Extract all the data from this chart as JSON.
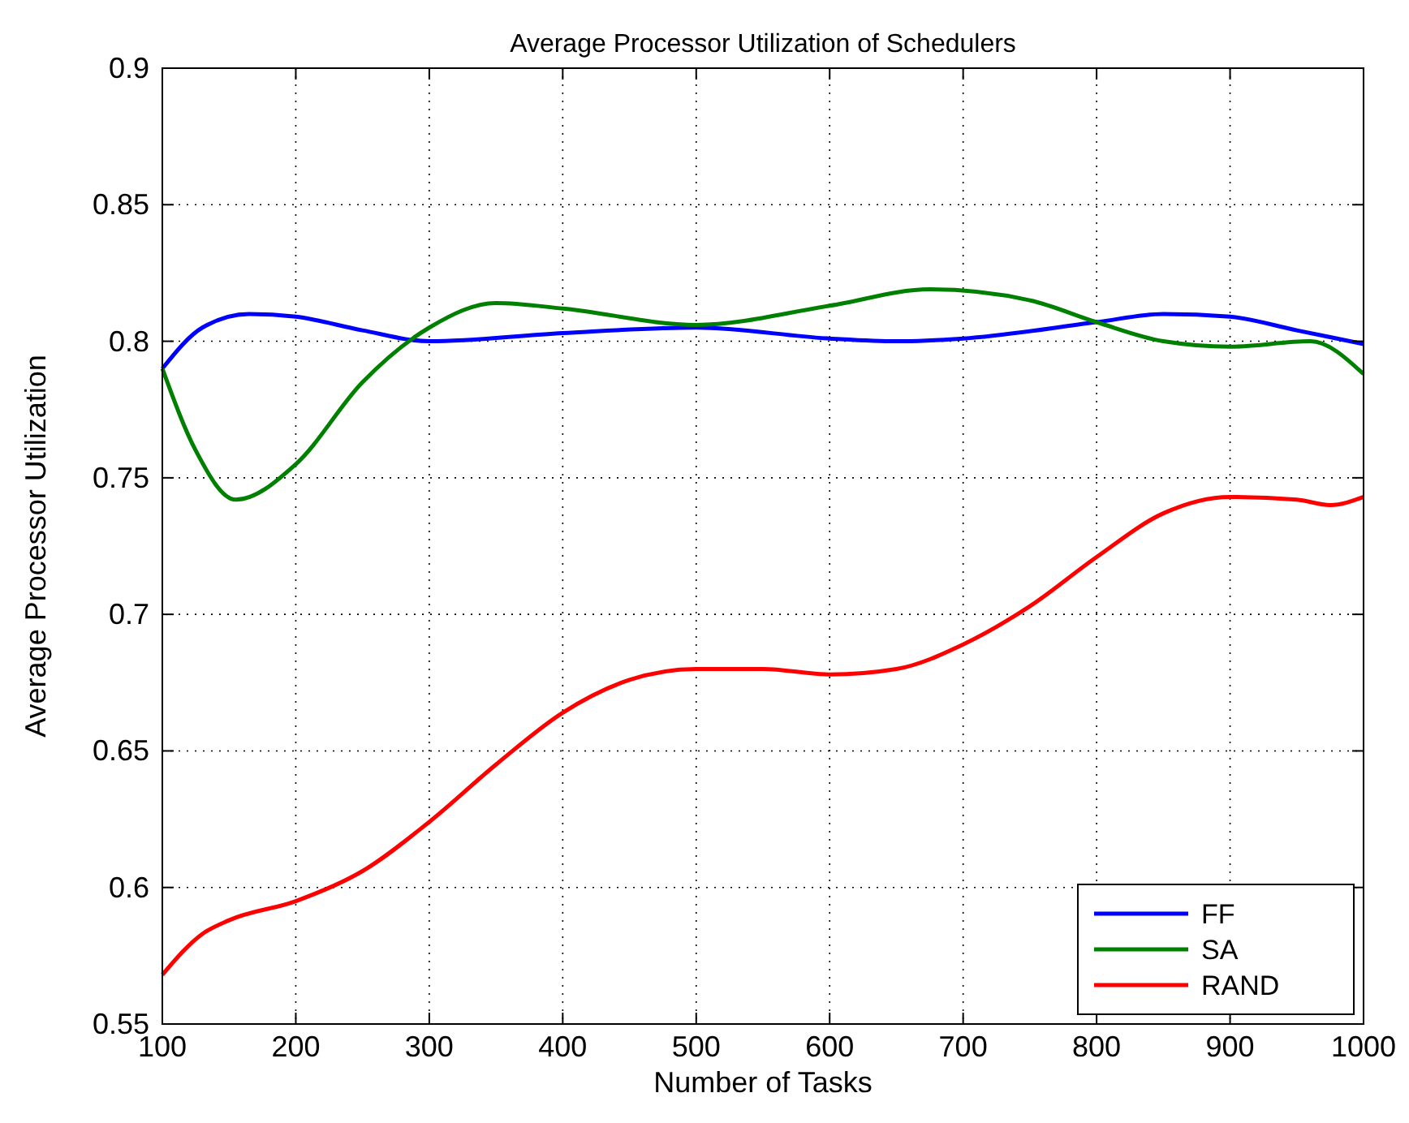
{
  "chart_data": {
    "type": "line",
    "title": "Average Processor Utilization of Schedulers",
    "xlabel": "Number of Tasks",
    "ylabel": "Average Processor Utilization",
    "xlim": [
      100,
      1000
    ],
    "xticks": [
      100,
      200,
      300,
      400,
      500,
      600,
      700,
      800,
      900,
      1000
    ],
    "ylim": [
      0.55,
      0.9
    ],
    "yticks": [
      0.55,
      0.6,
      0.65,
      0.7,
      0.75,
      0.8,
      0.85,
      0.9
    ],
    "grid": true,
    "legend": "bottom right",
    "line_style": "solid",
    "marker": "none",
    "series": [
      {
        "name": "FF",
        "color": "#0000ff",
        "x": [
          100,
          130,
          165,
          200,
          250,
          300,
          400,
          500,
          600,
          650,
          700,
          800,
          850,
          900,
          950,
          1000
        ],
        "values": [
          0.79,
          0.805,
          0.81,
          0.809,
          0.804,
          0.8,
          0.803,
          0.805,
          0.801,
          0.8,
          0.801,
          0.807,
          0.81,
          0.809,
          0.804,
          0.799
        ]
      },
      {
        "name": "SA",
        "color": "#008000",
        "x": [
          100,
          125,
          155,
          200,
          250,
          300,
          350,
          400,
          500,
          600,
          675,
          750,
          800,
          850,
          900,
          960,
          1000
        ],
        "values": [
          0.79,
          0.76,
          0.742,
          0.755,
          0.785,
          0.805,
          0.814,
          0.812,
          0.806,
          0.813,
          0.819,
          0.815,
          0.807,
          0.8,
          0.798,
          0.8,
          0.788
        ]
      },
      {
        "name": "RAND",
        "color": "#ff0000",
        "x": [
          100,
          130,
          150,
          200,
          250,
          300,
          350,
          400,
          450,
          500,
          550,
          600,
          650,
          700,
          750,
          800,
          850,
          900,
          950,
          975,
          1000
        ],
        "values": [
          0.568,
          0.583,
          0.588,
          0.595,
          0.606,
          0.624,
          0.645,
          0.664,
          0.676,
          0.68,
          0.68,
          0.678,
          0.68,
          0.689,
          0.703,
          0.721,
          0.737,
          0.743,
          0.742,
          0.74,
          0.743
        ]
      }
    ]
  }
}
